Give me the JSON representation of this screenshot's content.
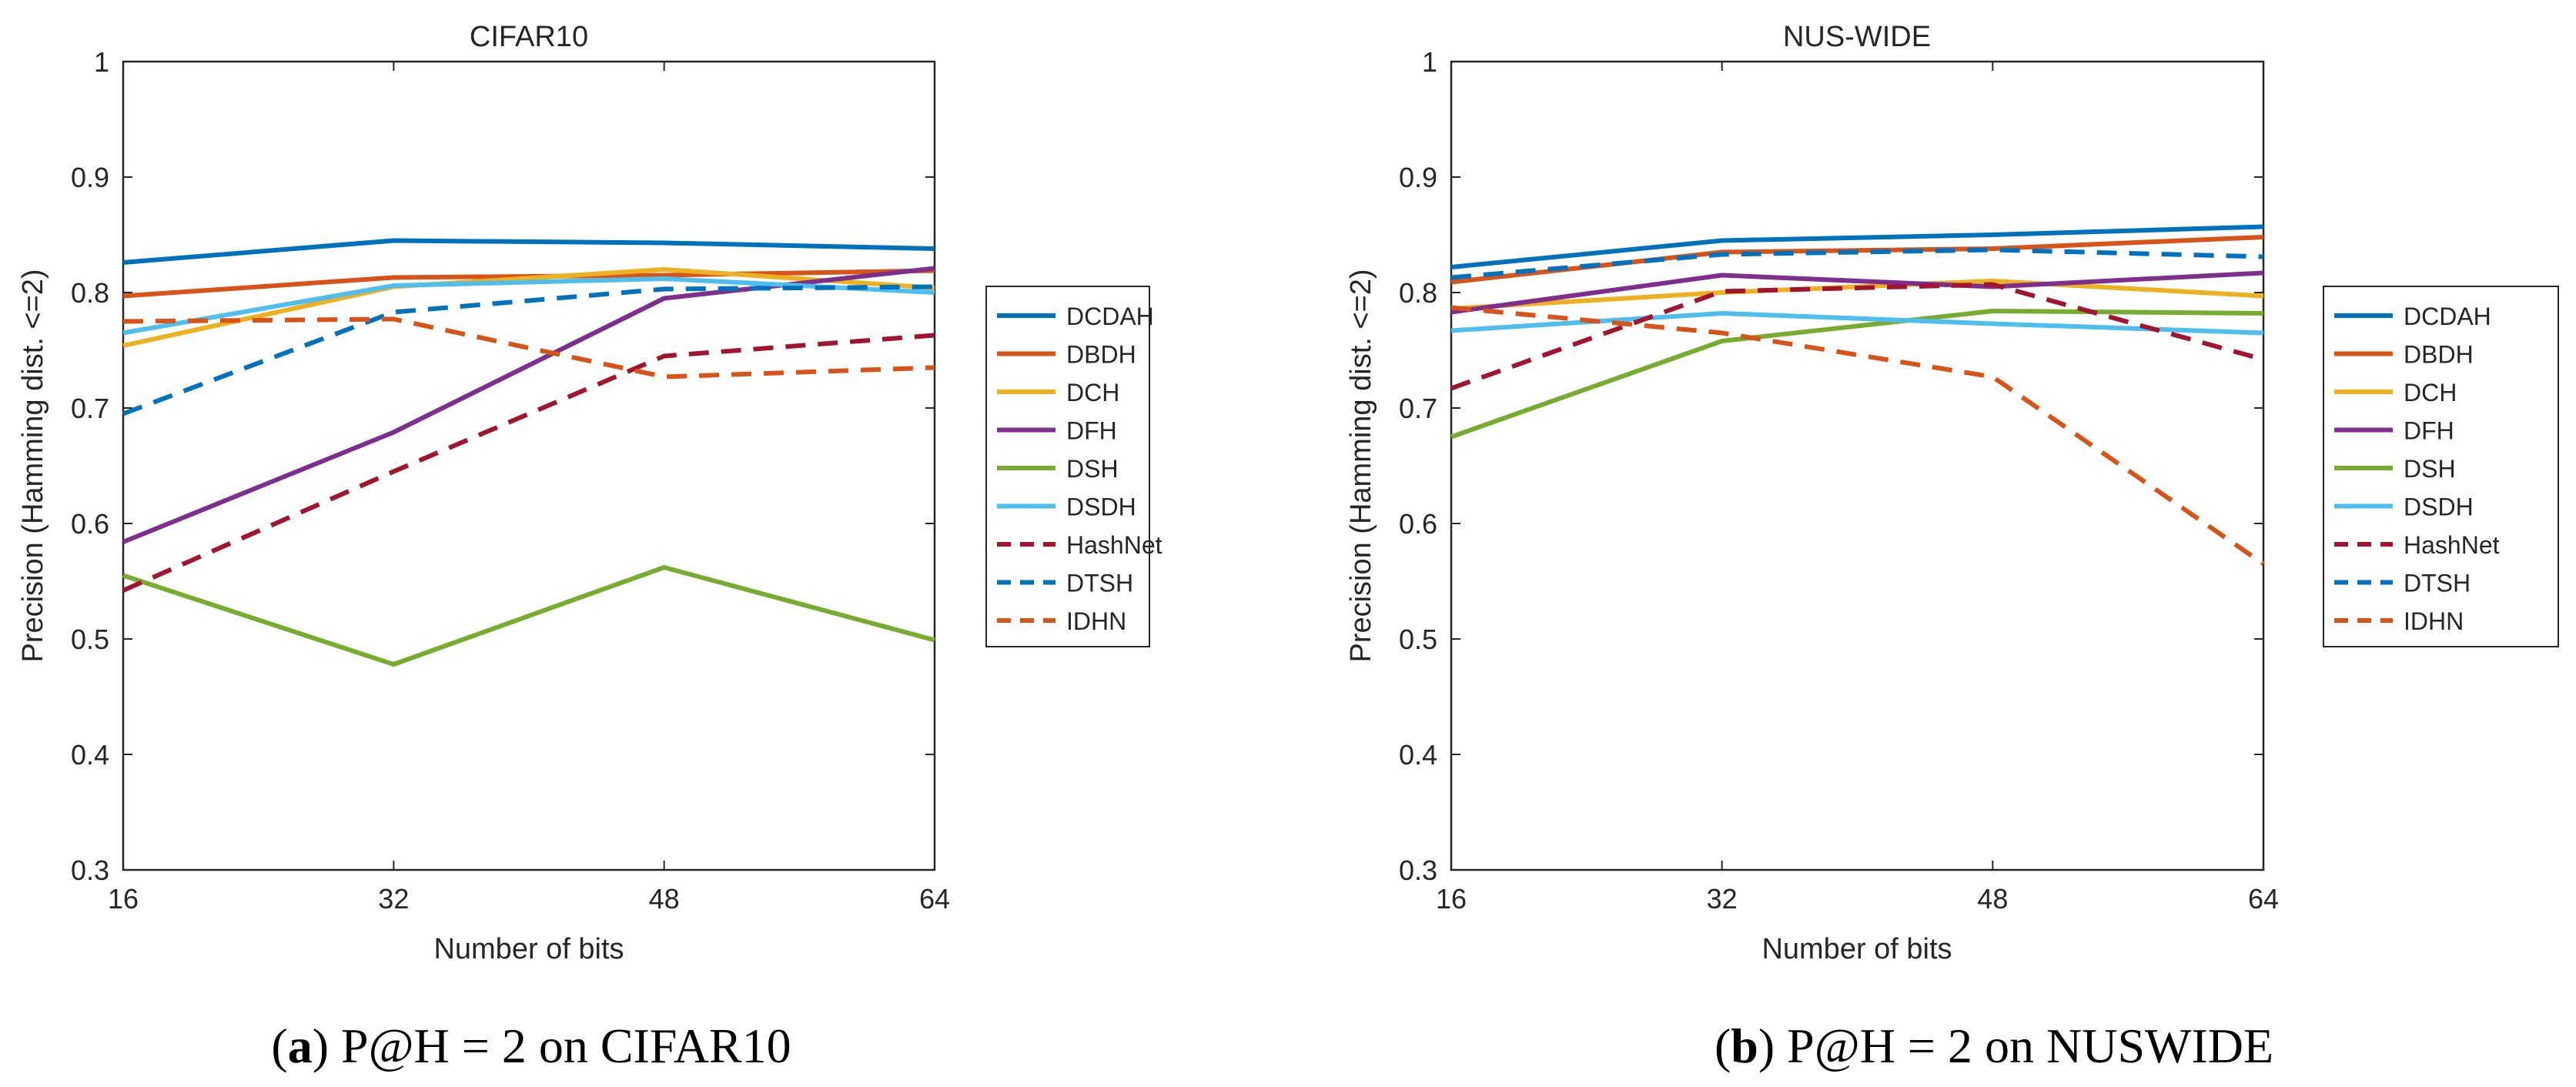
{
  "colors": {
    "DCDAH": "#0072BD",
    "DBDH": "#D95319",
    "DCH": "#EDB120",
    "DFH": "#7E2F8E",
    "DSH": "#77AC30",
    "DSDH": "#4DBEEE",
    "HashNet": "#A2142F",
    "DTSH": "#0072BD",
    "IDHN": "#D95319"
  },
  "chart_data": [
    {
      "type": "line",
      "title": "CIFAR10",
      "xlabel": "Number of bits",
      "ylabel": "Precision (Hamming dist. <=2)",
      "x": [
        16,
        32,
        48,
        64
      ],
      "x_ticks": [
        "16",
        "32",
        "48",
        "64"
      ],
      "y_ticks": [
        "0.3",
        "0.4",
        "0.5",
        "0.6",
        "0.7",
        "0.8",
        "0.9",
        "1"
      ],
      "xlim": [
        16,
        64
      ],
      "ylim": [
        0.3,
        1.0
      ],
      "legend_position": "outside-right",
      "caption_letter": "a",
      "caption_text": " P@H = 2 on CIFAR10",
      "series": [
        {
          "name": "DCDAH",
          "values": [
            0.826,
            0.845,
            0.843,
            0.838
          ],
          "dashed": false
        },
        {
          "name": "DBDH",
          "values": [
            0.797,
            0.813,
            0.815,
            0.819
          ],
          "dashed": false
        },
        {
          "name": "DCH",
          "values": [
            0.754,
            0.805,
            0.82,
            0.804
          ],
          "dashed": false
        },
        {
          "name": "DFH",
          "values": [
            0.584,
            0.679,
            0.795,
            0.821
          ],
          "dashed": false
        },
        {
          "name": "DSH",
          "values": [
            0.555,
            0.478,
            0.562,
            0.499
          ],
          "dashed": false
        },
        {
          "name": "DSDH",
          "values": [
            0.765,
            0.806,
            0.812,
            0.8
          ],
          "dashed": false
        },
        {
          "name": "HashNet",
          "values": [
            0.542,
            0.645,
            0.745,
            0.763
          ],
          "dashed": true
        },
        {
          "name": "DTSH",
          "values": [
            0.695,
            0.783,
            0.803,
            0.805
          ],
          "dashed": true
        },
        {
          "name": "IDHN",
          "values": [
            0.775,
            0.777,
            0.727,
            0.735
          ],
          "dashed": true
        }
      ]
    },
    {
      "type": "line",
      "title": "NUS-WIDE",
      "xlabel": "Number of bits",
      "ylabel": "Precision (Hamming dist. <=2)",
      "x": [
        16,
        32,
        48,
        64
      ],
      "x_ticks": [
        "16",
        "32",
        "48",
        "64"
      ],
      "y_ticks": [
        "0.3",
        "0.4",
        "0.5",
        "0.6",
        "0.7",
        "0.8",
        "0.9",
        "1"
      ],
      "xlim": [
        16,
        64
      ],
      "ylim": [
        0.3,
        1.0
      ],
      "legend_position": "outside-right",
      "caption_letter": "b",
      "caption_text": " P@H = 2 on NUSWIDE",
      "series": [
        {
          "name": "DCDAH",
          "values": [
            0.822,
            0.845,
            0.85,
            0.857
          ],
          "dashed": false
        },
        {
          "name": "DBDH",
          "values": [
            0.809,
            0.835,
            0.838,
            0.848
          ],
          "dashed": false
        },
        {
          "name": "DCH",
          "values": [
            0.786,
            0.8,
            0.81,
            0.797
          ],
          "dashed": false
        },
        {
          "name": "DFH",
          "values": [
            0.783,
            0.815,
            0.805,
            0.817
          ],
          "dashed": false
        },
        {
          "name": "DSH",
          "values": [
            0.675,
            0.758,
            0.784,
            0.782
          ],
          "dashed": false
        },
        {
          "name": "DSDH",
          "values": [
            0.767,
            0.782,
            0.773,
            0.765
          ],
          "dashed": false
        },
        {
          "name": "HashNet",
          "values": [
            0.717,
            0.801,
            0.807,
            0.742
          ],
          "dashed": true
        },
        {
          "name": "DTSH",
          "values": [
            0.813,
            0.833,
            0.837,
            0.831
          ],
          "dashed": true
        },
        {
          "name": "IDHN",
          "values": [
            0.787,
            0.765,
            0.727,
            0.565
          ],
          "dashed": true
        }
      ]
    }
  ]
}
